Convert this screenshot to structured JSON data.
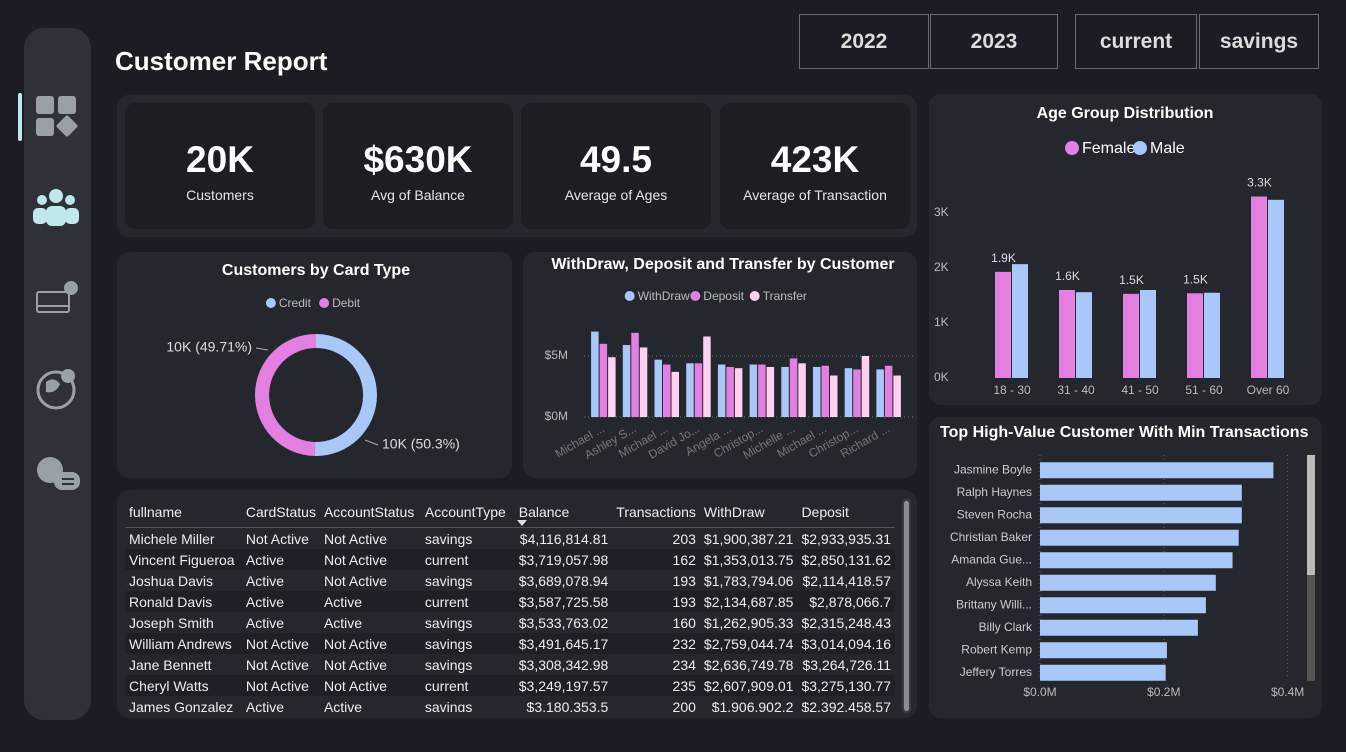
{
  "header": {
    "title": "Customer Report"
  },
  "filters": {
    "years": [
      "2022",
      "2023"
    ],
    "account_types": [
      "current",
      "savings"
    ]
  },
  "kpis": [
    {
      "value": "20K",
      "label": "Customers"
    },
    {
      "value": "$630K",
      "label": "Avg of Balance"
    },
    {
      "value": "49.5",
      "label": "Average of Ages"
    },
    {
      "value": "423K",
      "label": "Average of Transaction"
    }
  ],
  "chart_data": [
    {
      "type": "pie",
      "donut": true,
      "title": "Customers by Card Type",
      "categories": [
        "Credit",
        "Debit"
      ],
      "values": [
        50.3,
        49.71
      ],
      "value_labels": [
        "10K (50.3%)",
        "10K (49.71%)"
      ],
      "colors": [
        "#a9c8f7",
        "#e27fe0"
      ],
      "legend": "top"
    },
    {
      "type": "bar",
      "title": "WithDraw, Deposit and Transfer by Customer",
      "categories": [
        "Michael ...",
        "Ashley S...",
        "Michael ...",
        "David Jo...",
        "Angela ...",
        "Christop...",
        "Michelle ...",
        "Michael ...",
        "Christop...",
        "Richard ..."
      ],
      "series": [
        {
          "name": "WithDraw",
          "color": "#a9c8f7",
          "values": [
            7.0,
            5.9,
            4.7,
            4.4,
            4.3,
            4.3,
            4.1,
            4.1,
            4.0,
            3.9
          ]
        },
        {
          "name": "Deposit",
          "color": "#e27fe0",
          "values": [
            6.0,
            6.9,
            4.3,
            4.4,
            4.1,
            4.3,
            4.8,
            4.2,
            3.9,
            4.2
          ]
        },
        {
          "name": "Transfer",
          "color": "#fcd2f0",
          "values": [
            4.9,
            5.7,
            3.7,
            6.6,
            4.0,
            4.1,
            4.4,
            3.4,
            5.0,
            3.4
          ]
        }
      ],
      "ylim": [
        0,
        7.5
      ],
      "yticks": [
        {
          "value": 0,
          "label": "$0M"
        },
        {
          "value": 5,
          "label": "$5M"
        }
      ],
      "grid": true,
      "legend": "top"
    },
    {
      "type": "bar",
      "title": "Age Group Distribution",
      "categories": [
        "18 - 30",
        "31 - 40",
        "41 - 50",
        "51 - 60",
        "Over 60"
      ],
      "series": [
        {
          "name": "Female",
          "color": "#e27fe0",
          "values": [
            1.93,
            1.6,
            1.53,
            1.54,
            3.3
          ],
          "value_labels": [
            "1.9K",
            "1.6K",
            "1.5K",
            "1.5K",
            "3.3K"
          ]
        },
        {
          "name": "Male",
          "color": "#a9c8f7",
          "values": [
            2.07,
            1.56,
            1.6,
            1.55,
            3.24
          ]
        }
      ],
      "ylim": [
        0,
        3.5
      ],
      "yticks": [
        {
          "value": 0,
          "label": "0K"
        },
        {
          "value": 1,
          "label": "1K"
        },
        {
          "value": 2,
          "label": "2K"
        },
        {
          "value": 3,
          "label": "3K"
        }
      ],
      "grid": false,
      "legend": "top"
    },
    {
      "type": "bar",
      "orientation": "horizontal",
      "title": "Top High-Value Customer With Min Transactions",
      "categories": [
        "Jasmine Boyle",
        "Ralph Haynes",
        "Steven Rocha",
        "Christian Baker",
        "Amanda Gue...",
        "Alyssa Keith",
        "Brittany Willi...",
        "Billy Clark",
        "Robert Kemp",
        "Jeffery Torres"
      ],
      "series": [
        {
          "color": "#a9c8f7",
          "values": [
            0.377,
            0.326,
            0.326,
            0.321,
            0.311,
            0.284,
            0.268,
            0.255,
            0.205,
            0.203
          ]
        }
      ],
      "xlim": [
        0,
        0.42
      ],
      "xticks": [
        {
          "value": 0,
          "label": "$0.0M"
        },
        {
          "value": 0.2,
          "label": "$0.2M"
        },
        {
          "value": 0.4,
          "label": "$0.4M"
        }
      ],
      "grid": true
    }
  ],
  "table": {
    "columns": [
      "fullname",
      "CardStatus",
      "AccountStatus",
      "AccountType",
      "Balance",
      "Transactions",
      "WithDraw",
      "Deposit"
    ],
    "rows": [
      [
        "Michele Miller",
        "Not Active",
        "Not Active",
        "savings",
        "$4,116,814.81",
        "203",
        "$1,900,387.21",
        "$2,933,935.31"
      ],
      [
        "Vincent Figueroa",
        "Active",
        "Not Active",
        "current",
        "$3,719,057.98",
        "162",
        "$1,353,013.75",
        "$2,850,131.62"
      ],
      [
        "Joshua Davis",
        "Active",
        "Not Active",
        "savings",
        "$3,689,078.94",
        "193",
        "$1,783,794.06",
        "$2,114,418.57"
      ],
      [
        "Ronald Davis",
        "Active",
        "Active",
        "current",
        "$3,587,725.58",
        "193",
        "$2,134,687.85",
        "$2,878,066.7"
      ],
      [
        "Joseph Smith",
        "Active",
        "Active",
        "savings",
        "$3,533,763.02",
        "160",
        "$1,262,905.33",
        "$2,315,248.43"
      ],
      [
        "William Andrews",
        "Not Active",
        "Not Active",
        "savings",
        "$3,491,645.17",
        "232",
        "$2,759,044.74",
        "$3,014,094.16"
      ],
      [
        "Jane Bennett",
        "Not Active",
        "Not Active",
        "savings",
        "$3,308,342.98",
        "234",
        "$2,636,749.78",
        "$3,264,726.11"
      ],
      [
        "Cheryl Watts",
        "Not Active",
        "Not Active",
        "current",
        "$3,249,197.57",
        "235",
        "$2,607,909.01",
        "$3,275,130.77"
      ],
      [
        "James Gonzalez",
        "Active",
        "Active",
        "savings",
        "$3,180,353.5",
        "200",
        "$1,906,902.2",
        "$2,392,458.57"
      ]
    ]
  }
}
